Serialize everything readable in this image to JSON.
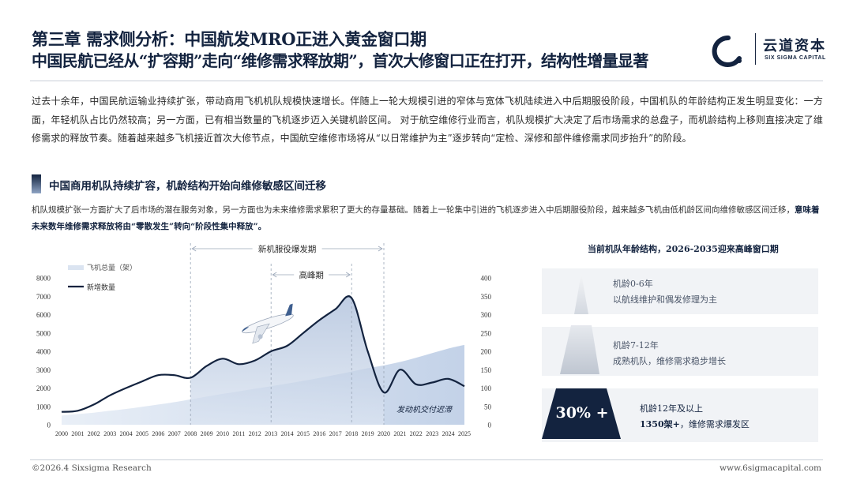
{
  "header": {
    "title_line1": "第三章 需求侧分析：中国航发MRO正进入黄金窗口期",
    "title_line2": "中国民航已经从“扩容期”走向“维修需求释放期”，首次大修窗口正在打开，结构性增量显著"
  },
  "logo": {
    "name_cn": "云道资本",
    "name_en": "SIX SIGMA CAPITAL"
  },
  "intro": "过去十余年，中国民航运输业持续扩张，带动商用飞机机队规模快速增长。伴随上一轮大规模引进的窄体与宽体飞机陆续进入中后期服役阶段，中国机队的年龄结构正发生明显变化：一方面，年轻机队占比仍然较高；另一方面，已有相当数量的飞机逐步迈入关键机龄区间。 对于航空维修行业而言，机队规模扩大决定了后市场需求的总盘子，而机龄结构上移则直接决定了维修需求的释放节奏。随着越来越多飞机接近首次大修节点，中国航空维修市场将从“以日常维护为主”逐步转向“定检、深修和部件维修需求同步抬升”的阶段。",
  "section": {
    "title": "中国商用机队持续扩容，机龄结构开始向维修敏感区间迁移",
    "sub_text": "机队规模扩张一方面扩大了后市场的潜在服务对象，另一方面也为未来维修需求累积了更大的存量基础。随着上一轮集中引进的飞机逐步进入中后期服役阶段，越来越多飞机由低机龄区间向维修敏感区间迁移，",
    "sub_bold": "意味着未来数年维修需求释放将由“零散发生”转向“阶段性集中释放”。"
  },
  "chart_data": {
    "type": "line",
    "x": [
      "2000",
      "2001",
      "2002",
      "2003",
      "2004",
      "2005",
      "2006",
      "2007",
      "2008",
      "2009",
      "2010",
      "2011",
      "2012",
      "2013",
      "2014",
      "2015",
      "2016",
      "2017",
      "2018",
      "2019",
      "2020",
      "2021",
      "2022",
      "2023",
      "2024",
      "2025"
    ],
    "series": [
      {
        "name": "飞机总量（架）",
        "axis": "left",
        "style": "area",
        "values": [
          500,
          580,
          660,
          760,
          860,
          980,
          1100,
          1230,
          1380,
          1530,
          1680,
          1820,
          1960,
          2100,
          2240,
          2390,
          2550,
          2720,
          2900,
          3080,
          3230,
          3420,
          3650,
          3900,
          4150,
          4350
        ]
      },
      {
        "name": "新增数量",
        "axis": "right",
        "values": [
          35,
          38,
          55,
          80,
          100,
          118,
          135,
          135,
          128,
          160,
          180,
          165,
          175,
          200,
          215,
          250,
          285,
          315,
          345,
          200,
          88,
          150,
          110,
          115,
          125,
          105
        ]
      }
    ],
    "left_axis": {
      "min": 0,
      "max": 8000,
      "ticks": [
        "0",
        "1000",
        "2000",
        "3000",
        "4000",
        "5000",
        "6000",
        "7000",
        "8000"
      ]
    },
    "right_axis": {
      "min": 0,
      "max": 400,
      "ticks": [
        "0",
        "50",
        "100",
        "150",
        "200",
        "250",
        "300",
        "350",
        "400"
      ]
    },
    "annotations": {
      "window_label": "新机服役爆发期",
      "window_range": [
        "2008",
        "2020"
      ],
      "peak_label": "高峰期",
      "peak_range": [
        "2013",
        "2018"
      ],
      "callout": "发动机交付迟滞"
    }
  },
  "age_structure": {
    "title": "当前机队年龄结构，2026-2035迎来高峰窗口期",
    "tiers": [
      {
        "line1": "机龄0-6年",
        "line2": "以航线维护和偶发修理为主"
      },
      {
        "line1": "机龄7-12年",
        "line2": "成熟机队，维修需求稳步增长"
      },
      {
        "line1": "机龄12年及以上",
        "line2_bold": "1350架+",
        "line2_rest": "，维修需求爆发区"
      }
    ],
    "highlight_pct": "30% +"
  },
  "footer": {
    "left": "©2026.4 Sixsigma Research",
    "right": "www.6sigmacapital.com"
  },
  "colors": {
    "navy": "#13233f",
    "area_fill": "#c9d6ea",
    "peak_fill": "#9eb4d4",
    "band": "#f1f3f6"
  }
}
